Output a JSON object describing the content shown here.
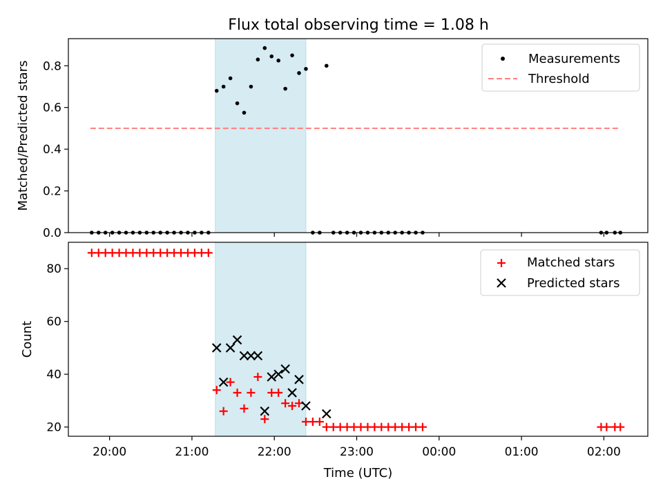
{
  "title": "Flux total observing time = 1.08 h",
  "chart_data": [
    {
      "type": "scatter",
      "ylabel": "Matched/Predicted stars",
      "ylim": [
        0,
        0.93
      ],
      "yticks": [
        "0.0",
        "0.2",
        "0.4",
        "0.6",
        "0.8"
      ],
      "shaded_span": [
        "21:17",
        "22:23"
      ],
      "legend_position": "upper right",
      "legend": [
        {
          "label": "Measurements",
          "marker": "dot",
          "color": "#000000"
        },
        {
          "label": "Threshold",
          "marker": "dashed-line",
          "color": "#ff7f7f"
        }
      ],
      "threshold": {
        "value": 0.5,
        "x_range": [
          "19:46",
          "02:12"
        ],
        "color": "#ff7f7f"
      },
      "measurements": [
        {
          "t": "19:47",
          "v": 0
        },
        {
          "t": "19:52",
          "v": 0
        },
        {
          "t": "19:57",
          "v": 0
        },
        {
          "t": "20:02",
          "v": 0
        },
        {
          "t": "20:07",
          "v": 0
        },
        {
          "t": "20:12",
          "v": 0
        },
        {
          "t": "20:17",
          "v": 0
        },
        {
          "t": "20:22",
          "v": 0
        },
        {
          "t": "20:27",
          "v": 0
        },
        {
          "t": "20:32",
          "v": 0
        },
        {
          "t": "20:37",
          "v": 0
        },
        {
          "t": "20:42",
          "v": 0
        },
        {
          "t": "20:47",
          "v": 0
        },
        {
          "t": "20:52",
          "v": 0
        },
        {
          "t": "20:57",
          "v": 0
        },
        {
          "t": "21:02",
          "v": 0
        },
        {
          "t": "21:07",
          "v": 0
        },
        {
          "t": "21:12",
          "v": 0
        },
        {
          "t": "21:18",
          "v": 0.68
        },
        {
          "t": "21:23",
          "v": 0.7
        },
        {
          "t": "21:28",
          "v": 0.74
        },
        {
          "t": "21:33",
          "v": 0.62
        },
        {
          "t": "21:38",
          "v": 0.575
        },
        {
          "t": "21:43",
          "v": 0.7
        },
        {
          "t": "21:48",
          "v": 0.83
        },
        {
          "t": "21:53",
          "v": 0.885
        },
        {
          "t": "21:58",
          "v": 0.845
        },
        {
          "t": "22:03",
          "v": 0.825
        },
        {
          "t": "22:08",
          "v": 0.69
        },
        {
          "t": "22:13",
          "v": 0.85
        },
        {
          "t": "22:18",
          "v": 0.765
        },
        {
          "t": "22:23",
          "v": 0.785
        },
        {
          "t": "22:28",
          "v": 0
        },
        {
          "t": "22:33",
          "v": 0
        },
        {
          "t": "22:38",
          "v": 0.8
        },
        {
          "t": "22:43",
          "v": 0
        },
        {
          "t": "22:48",
          "v": 0
        },
        {
          "t": "22:53",
          "v": 0
        },
        {
          "t": "22:58",
          "v": 0
        },
        {
          "t": "23:03",
          "v": 0
        },
        {
          "t": "23:08",
          "v": 0
        },
        {
          "t": "23:13",
          "v": 0
        },
        {
          "t": "23:18",
          "v": 0
        },
        {
          "t": "23:23",
          "v": 0
        },
        {
          "t": "23:28",
          "v": 0
        },
        {
          "t": "23:33",
          "v": 0
        },
        {
          "t": "23:38",
          "v": 0
        },
        {
          "t": "23:43",
          "v": 0
        },
        {
          "t": "23:48",
          "v": 0
        },
        {
          "t": "01:58",
          "v": 0
        },
        {
          "t": "02:02",
          "v": 0
        },
        {
          "t": "02:08",
          "v": 0
        },
        {
          "t": "02:12",
          "v": 0
        }
      ]
    },
    {
      "type": "scatter",
      "ylabel": "Count",
      "xlabel": "Time (UTC)",
      "ylim": [
        16.5,
        90
      ],
      "yticks": [
        20,
        40,
        60,
        80
      ],
      "xticks": [
        "20:00",
        "21:00",
        "22:00",
        "23:00",
        "00:00",
        "01:00",
        "02:00"
      ],
      "xlim": [
        "19:30",
        "02:32"
      ],
      "shaded_span": [
        "21:17",
        "22:23"
      ],
      "legend_position": "upper right",
      "legend": [
        {
          "label": "Matched stars",
          "marker": "plus",
          "color": "#ff0000"
        },
        {
          "label": "Predicted stars",
          "marker": "x",
          "color": "#000000"
        }
      ],
      "series": [
        {
          "name": "Matched stars",
          "color": "#ff0000",
          "marker": "plus",
          "points": [
            {
              "t": "19:47",
              "v": 86
            },
            {
              "t": "19:52",
              "v": 86
            },
            {
              "t": "19:57",
              "v": 86
            },
            {
              "t": "20:02",
              "v": 86
            },
            {
              "t": "20:07",
              "v": 86
            },
            {
              "t": "20:12",
              "v": 86
            },
            {
              "t": "20:17",
              "v": 86
            },
            {
              "t": "20:22",
              "v": 86
            },
            {
              "t": "20:27",
              "v": 86
            },
            {
              "t": "20:32",
              "v": 86
            },
            {
              "t": "20:37",
              "v": 86
            },
            {
              "t": "20:42",
              "v": 86
            },
            {
              "t": "20:47",
              "v": 86
            },
            {
              "t": "20:52",
              "v": 86
            },
            {
              "t": "20:57",
              "v": 86
            },
            {
              "t": "21:02",
              "v": 86
            },
            {
              "t": "21:07",
              "v": 86
            },
            {
              "t": "21:12",
              "v": 86
            },
            {
              "t": "21:18",
              "v": 34
            },
            {
              "t": "21:23",
              "v": 26
            },
            {
              "t": "21:28",
              "v": 37
            },
            {
              "t": "21:33",
              "v": 33
            },
            {
              "t": "21:38",
              "v": 27
            },
            {
              "t": "21:43",
              "v": 33
            },
            {
              "t": "21:48",
              "v": 39
            },
            {
              "t": "21:53",
              "v": 23
            },
            {
              "t": "21:58",
              "v": 33
            },
            {
              "t": "22:03",
              "v": 33
            },
            {
              "t": "22:08",
              "v": 29
            },
            {
              "t": "22:13",
              "v": 28
            },
            {
              "t": "22:18",
              "v": 29
            },
            {
              "t": "22:23",
              "v": 22
            },
            {
              "t": "22:28",
              "v": 22
            },
            {
              "t": "22:33",
              "v": 22
            },
            {
              "t": "22:38",
              "v": 20
            },
            {
              "t": "22:43",
              "v": 20
            },
            {
              "t": "22:48",
              "v": 20
            },
            {
              "t": "22:53",
              "v": 20
            },
            {
              "t": "22:58",
              "v": 20
            },
            {
              "t": "23:03",
              "v": 20
            },
            {
              "t": "23:08",
              "v": 20
            },
            {
              "t": "23:13",
              "v": 20
            },
            {
              "t": "23:18",
              "v": 20
            },
            {
              "t": "23:23",
              "v": 20
            },
            {
              "t": "23:28",
              "v": 20
            },
            {
              "t": "23:33",
              "v": 20
            },
            {
              "t": "23:38",
              "v": 20
            },
            {
              "t": "23:43",
              "v": 20
            },
            {
              "t": "23:48",
              "v": 20
            },
            {
              "t": "01:58",
              "v": 20
            },
            {
              "t": "02:02",
              "v": 20
            },
            {
              "t": "02:08",
              "v": 20
            },
            {
              "t": "02:12",
              "v": 20
            }
          ]
        },
        {
          "name": "Predicted stars",
          "color": "#000000",
          "marker": "x",
          "points": [
            {
              "t": "21:18",
              "v": 50
            },
            {
              "t": "21:23",
              "v": 37
            },
            {
              "t": "21:28",
              "v": 50
            },
            {
              "t": "21:33",
              "v": 53
            },
            {
              "t": "21:38",
              "v": 47
            },
            {
              "t": "21:43",
              "v": 47
            },
            {
              "t": "21:48",
              "v": 47
            },
            {
              "t": "21:53",
              "v": 26
            },
            {
              "t": "21:58",
              "v": 39
            },
            {
              "t": "22:03",
              "v": 40
            },
            {
              "t": "22:08",
              "v": 42
            },
            {
              "t": "22:13",
              "v": 33
            },
            {
              "t": "22:18",
              "v": 38
            },
            {
              "t": "22:23",
              "v": 28
            },
            {
              "t": "22:38",
              "v": 25
            }
          ]
        }
      ]
    }
  ]
}
